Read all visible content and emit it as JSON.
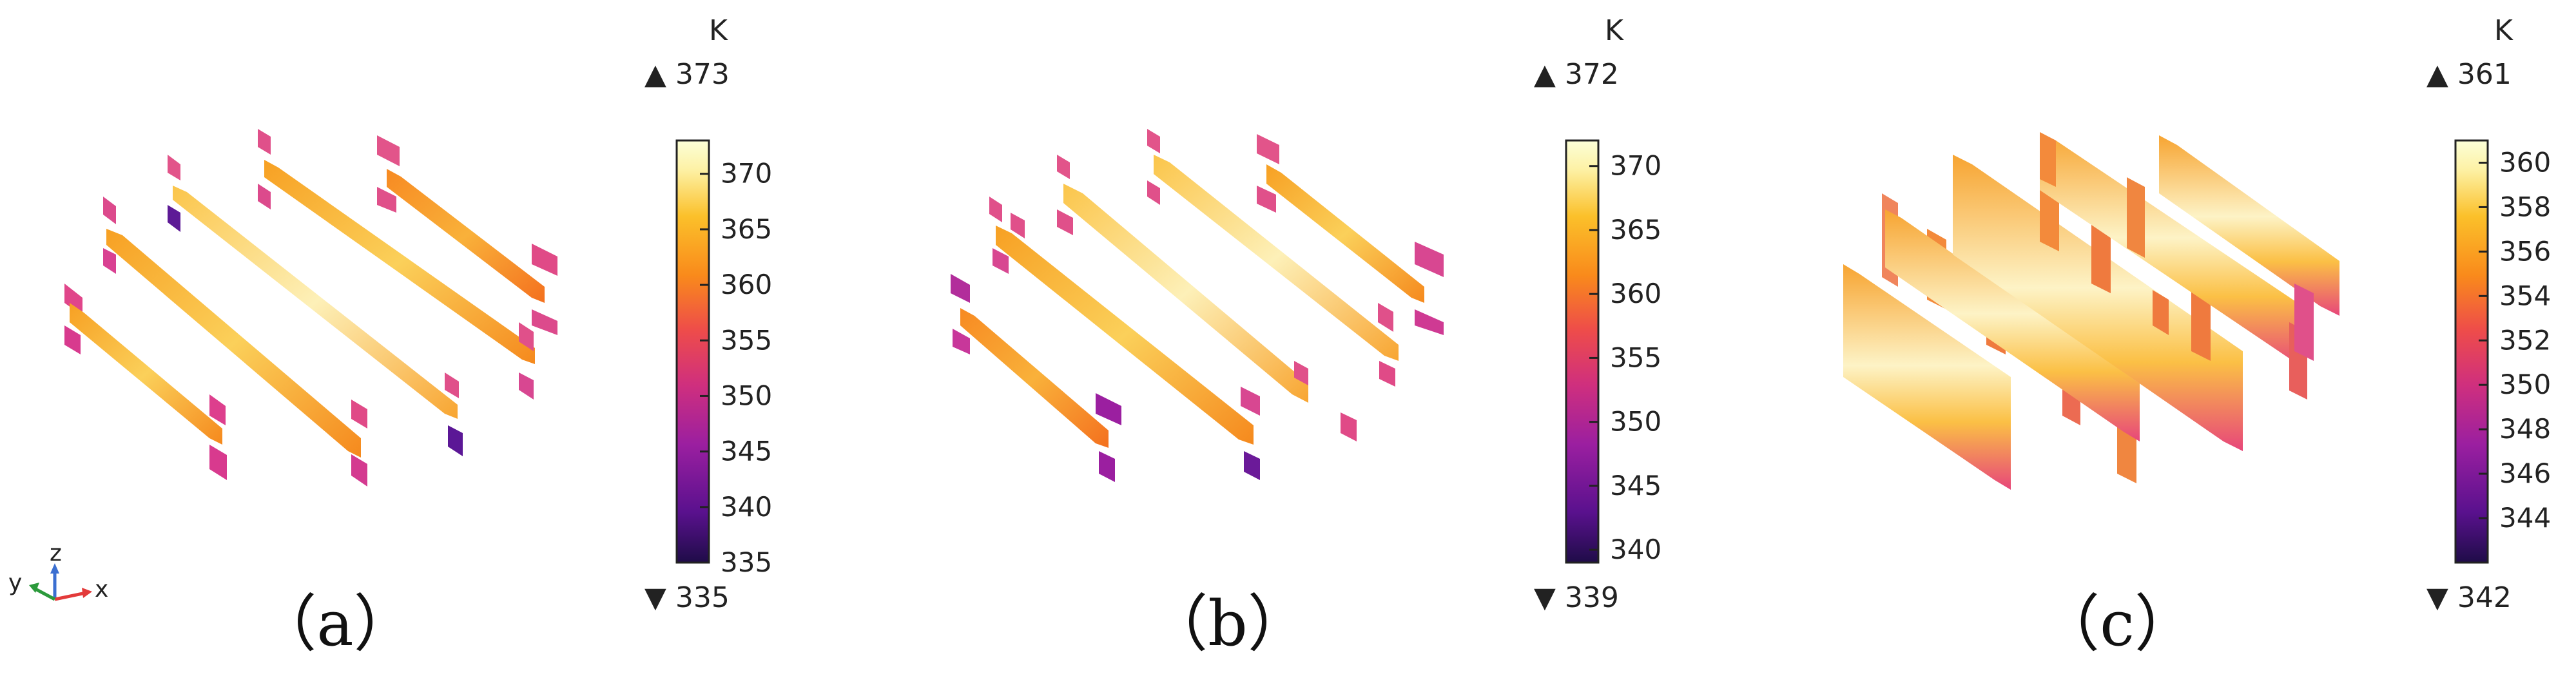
{
  "panels": [
    {
      "id": "a",
      "caption": "（a）",
      "unit": "K",
      "max": "373",
      "min": "335",
      "range": [
        335,
        373
      ],
      "ticks": [
        "335",
        "340",
        "345",
        "350",
        "355",
        "360",
        "365",
        "370"
      ]
    },
    {
      "id": "b",
      "caption": "（b）",
      "unit": "K",
      "max": "372",
      "min": "339",
      "range": [
        339,
        372
      ],
      "ticks": [
        "340",
        "345",
        "350",
        "355",
        "360",
        "365",
        "370"
      ]
    },
    {
      "id": "c",
      "caption": "（c）",
      "unit": "K",
      "max": "361",
      "min": "342",
      "range": [
        342,
        361
      ],
      "ticks": [
        "344",
        "346",
        "348",
        "350",
        "352",
        "354",
        "356",
        "358",
        "360"
      ]
    }
  ],
  "axes_triad": {
    "x": "x",
    "y": "y",
    "z": "z"
  },
  "colormap": [
    "#1f0c48",
    "#5a118e",
    "#9b1fa0",
    "#cf2f7e",
    "#ee4c4a",
    "#f98a1b",
    "#fbc02a",
    "#fdf1a4",
    "#fcffd8"
  ],
  "symbols": {
    "max_marker": "▲",
    "min_marker": "▼"
  }
}
